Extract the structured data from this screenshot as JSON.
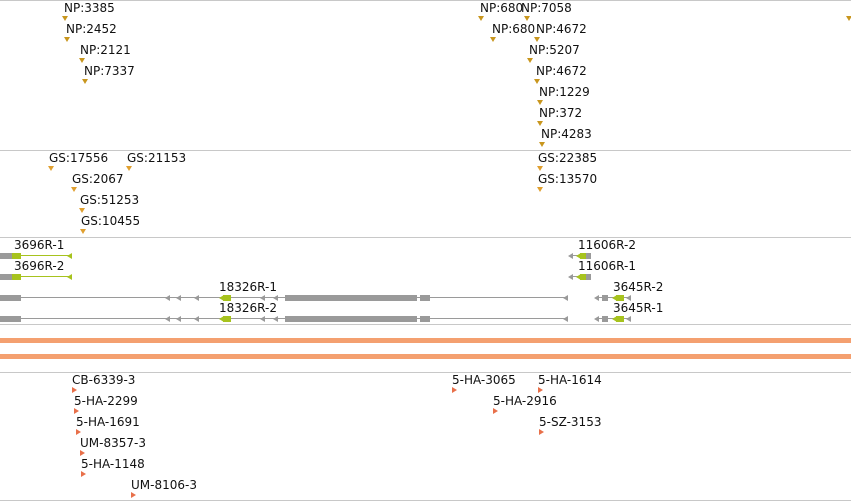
{
  "colors": {
    "np_marker": "#c8961e",
    "gs_marker": "#e0a030",
    "ha_marker": "#e8704a",
    "transcript_gray": "#9a9a9a",
    "transcript_highlight": "#a7c31e",
    "band": "#f4a070"
  },
  "np_track": {
    "features": [
      "NP:3385",
      "NP:2452",
      "NP:2121",
      "NP:7337",
      "NP:680",
      "NP:7058",
      "NP:680",
      "NP:4672",
      "NP:5207",
      "NP:4672",
      "NP:1229",
      "NP:372",
      "NP:4283"
    ]
  },
  "gs_track": {
    "features": [
      "GS:17556",
      "GS:21153",
      "GS:2067",
      "GS:51253",
      "GS:10455",
      "GS:22385",
      "GS:13570"
    ]
  },
  "gene_track": {
    "transcripts": [
      "3696R-1",
      "3696R-2",
      "18326R-1",
      "18326R-2",
      "11606R-2",
      "11606R-1",
      "3645R-2",
      "3645R-1"
    ]
  },
  "ha_track": {
    "features": [
      "CB-6339-3",
      "5-HA-2299",
      "5-HA-1691",
      "UM-8357-3",
      "5-HA-1148",
      "UM-8106-3",
      "5-HA-3065",
      "5-HA-1614",
      "5-HA-2916",
      "5-SZ-3153"
    ]
  }
}
